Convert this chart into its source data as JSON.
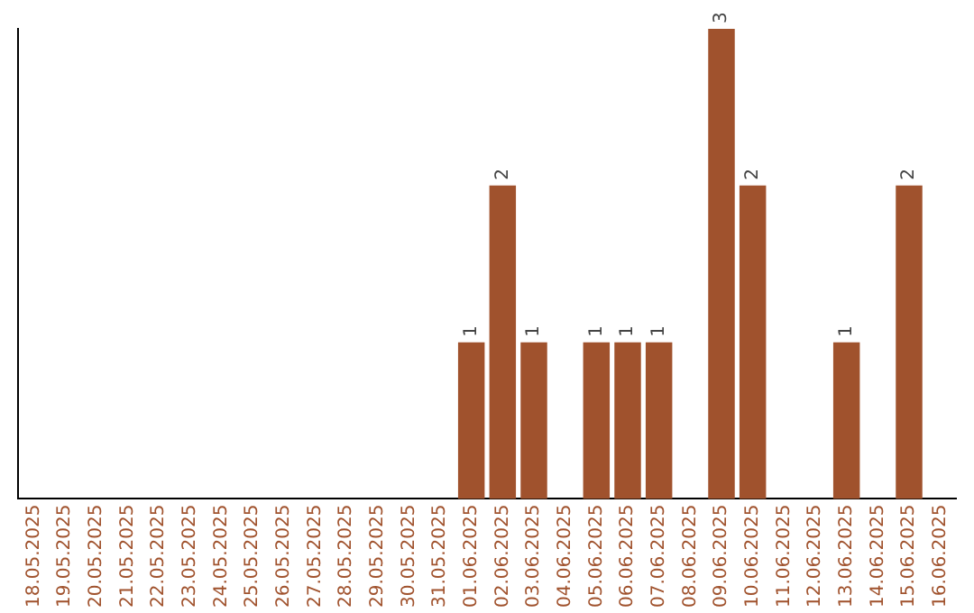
{
  "chart_data": {
    "type": "bar",
    "categories": [
      "18.05.2025",
      "19.05.2025",
      "20.05.2025",
      "21.05.2025",
      "22.05.2025",
      "23.05.2025",
      "24.05.2025",
      "25.05.2025",
      "26.05.2025",
      "27.05.2025",
      "28.05.2025",
      "29.05.2025",
      "30.05.2025",
      "31.05.2025",
      "01.06.2025",
      "02.06.2025",
      "03.06.2025",
      "04.06.2025",
      "05.06.2025",
      "06.06.2025",
      "07.06.2025",
      "08.06.2025",
      "09.06.2025",
      "10.06.2025",
      "11.06.2025",
      "12.06.2025",
      "13.06.2025",
      "14.06.2025",
      "15.06.2025",
      "16.06.2025"
    ],
    "values": [
      null,
      null,
      null,
      null,
      null,
      null,
      null,
      null,
      null,
      null,
      null,
      null,
      null,
      null,
      1,
      2,
      1,
      null,
      1,
      1,
      1,
      null,
      3,
      2,
      null,
      null,
      1,
      null,
      2,
      null
    ],
    "color": "#a0522d",
    "ylim": [
      0,
      3
    ],
    "data_labels": true,
    "grid": false,
    "legend": false,
    "tick_labels": "x"
  }
}
